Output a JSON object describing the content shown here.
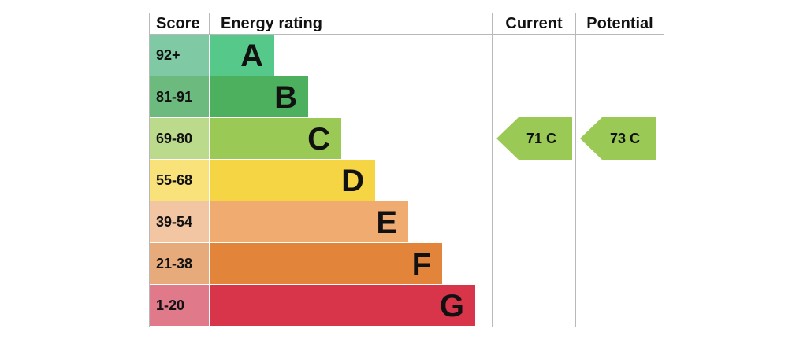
{
  "header": {
    "score": "Score",
    "energy_rating": "Energy rating",
    "current": "Current",
    "potential": "Potential"
  },
  "chart_data": {
    "type": "bar",
    "categories": [
      "A",
      "B",
      "C",
      "D",
      "E",
      "F",
      "G"
    ],
    "score_ranges": [
      "92+",
      "81-91",
      "69-80",
      "55-68",
      "39-54",
      "21-38",
      "1-20"
    ],
    "band_colors": [
      "#55c88a",
      "#4db05e",
      "#9aca55",
      "#f6d544",
      "#f0ab70",
      "#e2843a",
      "#d8344a"
    ],
    "score_colors": [
      "#7fc9a4",
      "#6dba7f",
      "#bbda8c",
      "#fae27a",
      "#f3c6a3",
      "#e7ab7b",
      "#e07a8a"
    ],
    "current": {
      "value": 71,
      "band": "C",
      "label": "71 C",
      "color": "#9aca55"
    },
    "potential": {
      "value": 73,
      "band": "C",
      "label": "73 C",
      "color": "#9aca55"
    }
  }
}
